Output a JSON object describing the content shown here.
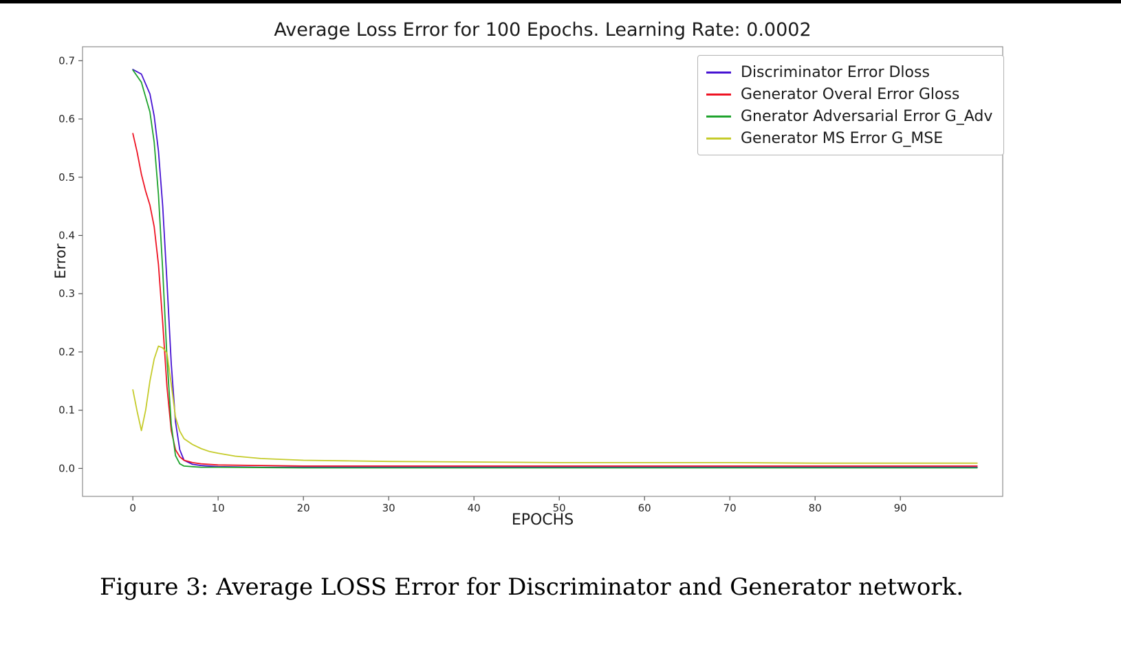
{
  "page": {
    "background_color": "#ffffff",
    "top_bar_color": "#000000"
  },
  "caption": "Figure 3: Average LOSS Error for Discriminator and Generator network.",
  "chart_data": {
    "type": "line",
    "title": "Average Loss Error for 100 Epochs. Learning Rate: 0.0002",
    "xlabel": "EPOCHS",
    "ylabel": "Error",
    "xlim": [
      -5.9,
      102
    ],
    "ylim": [
      -0.048,
      0.724
    ],
    "xticks": [
      0,
      10,
      20,
      30,
      40,
      50,
      60,
      70,
      80,
      90
    ],
    "xtick_labels": [
      "0",
      "10",
      "20",
      "30",
      "40",
      "50",
      "60",
      "70",
      "80",
      "90"
    ],
    "yticks": [
      0.0,
      0.1,
      0.2,
      0.3,
      0.4,
      0.5,
      0.6,
      0.7
    ],
    "ytick_labels": [
      "0.0",
      "0.1",
      "0.2",
      "0.3",
      "0.4",
      "0.5",
      "0.6",
      "0.7"
    ],
    "grid": false,
    "legend_position": "upper right",
    "frame_color": "#8c8c8c",
    "tick_color": "#555555",
    "tick_label_color": "#262626",
    "series": [
      {
        "id": "dloss",
        "name": "Discriminator Error Dloss",
        "color": "#4612d2",
        "points": [
          [
            0,
            0.685
          ],
          [
            1,
            0.677
          ],
          [
            2,
            0.643
          ],
          [
            2.5,
            0.605
          ],
          [
            3,
            0.545
          ],
          [
            3.5,
            0.45
          ],
          [
            4,
            0.32
          ],
          [
            4.5,
            0.18
          ],
          [
            5,
            0.08
          ],
          [
            5.5,
            0.032
          ],
          [
            6,
            0.014
          ],
          [
            7,
            0.007
          ],
          [
            8,
            0.005
          ],
          [
            10,
            0.003
          ],
          [
            15,
            0.002
          ],
          [
            20,
            0.002
          ],
          [
            30,
            0.002
          ],
          [
            50,
            0.002
          ],
          [
            70,
            0.002
          ],
          [
            99,
            0.002
          ]
        ]
      },
      {
        "id": "gloss",
        "name": "Generator Overal Error Gloss",
        "color": "#ee1222",
        "points": [
          [
            0,
            0.575
          ],
          [
            0.5,
            0.543
          ],
          [
            1,
            0.505
          ],
          [
            1.5,
            0.476
          ],
          [
            2,
            0.452
          ],
          [
            2.5,
            0.415
          ],
          [
            3,
            0.35
          ],
          [
            3.5,
            0.25
          ],
          [
            4,
            0.14
          ],
          [
            4.5,
            0.065
          ],
          [
            5,
            0.032
          ],
          [
            5.5,
            0.02
          ],
          [
            6,
            0.014
          ],
          [
            7,
            0.01
          ],
          [
            8,
            0.008
          ],
          [
            10,
            0.006
          ],
          [
            15,
            0.005
          ],
          [
            20,
            0.004
          ],
          [
            30,
            0.004
          ],
          [
            50,
            0.004
          ],
          [
            70,
            0.004
          ],
          [
            99,
            0.004
          ]
        ]
      },
      {
        "id": "g_adv",
        "name": "Gnerator Adversarial Error G_Adv",
        "color": "#1fa32d",
        "points": [
          [
            0,
            0.684
          ],
          [
            1,
            0.663
          ],
          [
            2,
            0.612
          ],
          [
            2.5,
            0.56
          ],
          [
            3,
            0.47
          ],
          [
            3.5,
            0.34
          ],
          [
            4,
            0.19
          ],
          [
            4.5,
            0.075
          ],
          [
            5,
            0.022
          ],
          [
            5.5,
            0.008
          ],
          [
            6,
            0.004
          ],
          [
            7,
            0.003
          ],
          [
            8,
            0.002
          ],
          [
            10,
            0.002
          ],
          [
            20,
            0.001
          ],
          [
            30,
            0.001
          ],
          [
            50,
            0.001
          ],
          [
            70,
            0.001
          ],
          [
            99,
            0.001
          ]
        ]
      },
      {
        "id": "g_mse",
        "name": "Generator MS Error G_MSE",
        "color": "#c5cb2a",
        "points": [
          [
            0,
            0.135
          ],
          [
            0.5,
            0.098
          ],
          [
            1,
            0.065
          ],
          [
            1.5,
            0.1
          ],
          [
            2,
            0.15
          ],
          [
            2.5,
            0.188
          ],
          [
            3,
            0.21
          ],
          [
            3.5,
            0.207
          ],
          [
            4,
            0.198
          ],
          [
            4.5,
            0.145
          ],
          [
            5,
            0.088
          ],
          [
            5.5,
            0.064
          ],
          [
            6,
            0.051
          ],
          [
            7,
            0.041
          ],
          [
            8,
            0.034
          ],
          [
            9,
            0.029
          ],
          [
            10,
            0.026
          ],
          [
            12,
            0.021
          ],
          [
            15,
            0.017
          ],
          [
            20,
            0.014
          ],
          [
            25,
            0.013
          ],
          [
            30,
            0.012
          ],
          [
            40,
            0.011
          ],
          [
            50,
            0.01
          ],
          [
            60,
            0.01
          ],
          [
            70,
            0.01
          ],
          [
            80,
            0.009
          ],
          [
            90,
            0.009
          ],
          [
            99,
            0.009
          ]
        ]
      }
    ]
  }
}
